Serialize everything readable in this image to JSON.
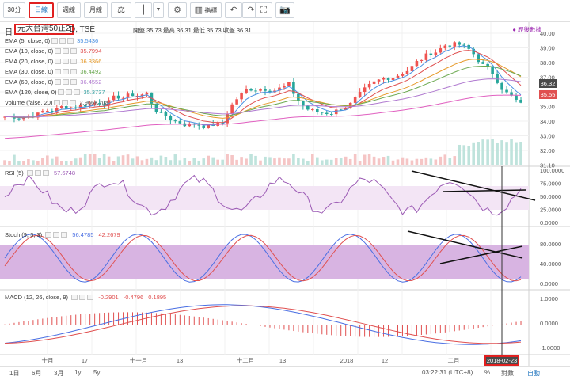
{
  "toolbar": {
    "buttons": [
      "30分",
      "日線",
      "週線",
      "月線"
    ]
  },
  "header": {
    "symbol_boxed": "元大台灣50正2",
    "symbol_prefix": "日",
    "symbol_rest": "D, TSE",
    "ohlc_text": "開盤 35.73 最高 36.31 最低 35.73 收盤 36.31",
    "adjusted_label": "● 歷後數據"
  },
  "legend": [
    {
      "name": "EMA (5, close, 0)",
      "value": "35.5436",
      "color": "#4a90e2"
    },
    {
      "name": "EMA (10, close, 0)",
      "value": "35.7994",
      "color": "#e05050"
    },
    {
      "name": "EMA (20, close, 0)",
      "value": "36.3366",
      "color": "#e69a2a"
    },
    {
      "name": "EMA (30, close, 0)",
      "value": "36.4492",
      "color": "#6aa84f"
    },
    {
      "name": "EMA (60, close, 0)",
      "value": "36.4552",
      "color": "#b07ad0"
    },
    {
      "name": "EMA (120, close, 0)",
      "value": "35.3737",
      "color": "#3ba3a3"
    },
    {
      "name": "Volume (false, 20)",
      "value": "2.966K n/a",
      "color": "#555555"
    }
  ],
  "indicators": {
    "rsi": {
      "label": "RSI (5)",
      "value": "57.6748"
    },
    "stoch": {
      "label": "Stoch (9, 3, 3)",
      "k": "56.4785",
      "d": "42.2679"
    },
    "macd": {
      "label": "MACD (12, 26, close, 9)",
      "v1": "-0.2901",
      "v2": "-0.4796",
      "v3": "0.1895"
    }
  },
  "price_axis": [
    "40.00",
    "39.00",
    "38.00",
    "37.00",
    "36.00",
    "35.00",
    "34.00",
    "33.00",
    "32.00",
    "31.10"
  ],
  "price_tags": {
    "last": "36.32",
    "ema": "35.55"
  },
  "rsi_axis": [
    "100.0000",
    "75.0000",
    "50.0000",
    "25.0000",
    "0.0000"
  ],
  "stoch_axis": [
    "80.0000",
    "40.0000",
    "0.0000"
  ],
  "macd_axis": [
    "1.0000",
    "0.0000",
    "-1.0000"
  ],
  "x_axis": [
    "十月",
    "17",
    "十一月",
    "13",
    "十二月",
    "13",
    "2018",
    "12",
    "二月"
  ],
  "crosshair_date": "2018-02-23",
  "bottombar": {
    "ranges": [
      "1日",
      "6月",
      "3月",
      "1y",
      "5y"
    ],
    "time": "03:22:31 (UTC+8)",
    "percent": "%",
    "log": "對數",
    "auto": "自動"
  },
  "colors": {
    "up": "#26a69a",
    "down": "#ef5350",
    "rsi": "#9c5bb5",
    "stoch_k": "#4a6fe3",
    "stoch_d": "#e05050",
    "accent": "#e02020"
  }
}
